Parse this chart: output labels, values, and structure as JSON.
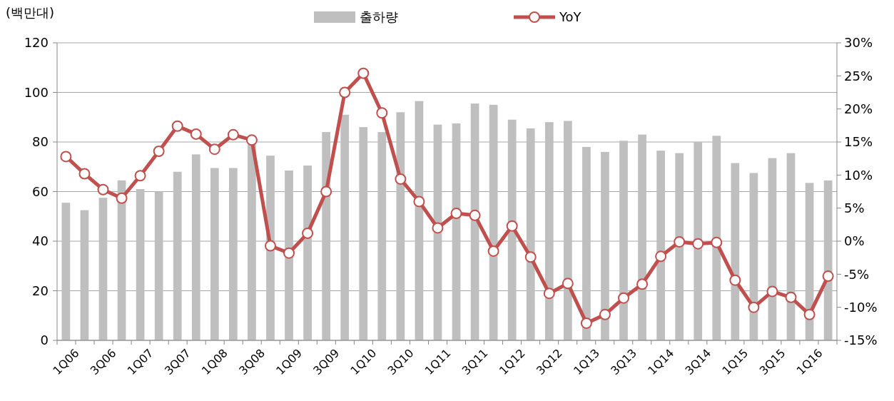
{
  "chart_data": {
    "type": "bar",
    "ylabel": "(백만대)",
    "categories": [
      "1Q06",
      null,
      "3Q06",
      null,
      "1Q07",
      null,
      "3Q07",
      null,
      "1Q08",
      null,
      "3Q08",
      null,
      "1Q09",
      null,
      "3Q09",
      null,
      "1Q10",
      null,
      "3Q10",
      null,
      "1Q11",
      null,
      "3Q11",
      null,
      "1Q12",
      null,
      "3Q12",
      null,
      "1Q13",
      null,
      "3Q13",
      null,
      "1Q14",
      null,
      "3Q14",
      null,
      "1Q15",
      null,
      "3Q15",
      null,
      "1Q16",
      null
    ],
    "series": [
      {
        "name": "출하량",
        "color": "#bfbfbf",
        "values": [
          55.5,
          52.5,
          57.5,
          64.5,
          61,
          60,
          68,
          75,
          69.5,
          69.5,
          79,
          74.5,
          68.5,
          70.5,
          84,
          91,
          86,
          84,
          92,
          96.5,
          87,
          87.5,
          95.5,
          95,
          89,
          85.5,
          88,
          88.5,
          78,
          76,
          80.5,
          83,
          76.5,
          75.5,
          80,
          82.5,
          71.5,
          67.5,
          73.5,
          75.5,
          63.5,
          64.5
        ]
      },
      {
        "name": "YoY",
        "type": "line",
        "axis": "y2",
        "color": "#c0504d",
        "marker": "circle",
        "values": [
          12.8,
          10.2,
          7.8,
          6.5,
          9.9,
          13.6,
          17.4,
          16.2,
          13.9,
          16.1,
          15.3,
          -0.7,
          -1.8,
          1.2,
          7.5,
          22.5,
          25.4,
          19.4,
          9.4,
          6.0,
          2.0,
          4.2,
          3.9,
          -1.5,
          2.3,
          -2.4,
          -7.9,
          -6.4,
          -12.4,
          -11.1,
          -8.6,
          -6.5,
          -2.3,
          -0.1,
          -0.4,
          -0.2,
          -5.9,
          -10.0,
          -7.6,
          -8.5,
          -11.1,
          -5.3
        ]
      }
    ],
    "ylim": [
      0,
      120
    ],
    "yticks": [
      0,
      20,
      40,
      60,
      80,
      100,
      120
    ],
    "y2lim": [
      -15,
      30
    ],
    "y2ticks": [
      {
        "value": -15,
        "label": "-15%"
      },
      {
        "value": -10,
        "label": "-10%"
      },
      {
        "value": -5,
        "label": "-5%"
      },
      {
        "value": 0,
        "label": "0%"
      },
      {
        "value": 5,
        "label": "5%"
      },
      {
        "value": 10,
        "label": "10%"
      },
      {
        "value": 15,
        "label": "15%"
      },
      {
        "value": 20,
        "label": "20%"
      },
      {
        "value": 25,
        "label": "25%"
      },
      {
        "value": 30,
        "label": "30%"
      }
    ],
    "grid": "y",
    "legend": "top"
  }
}
